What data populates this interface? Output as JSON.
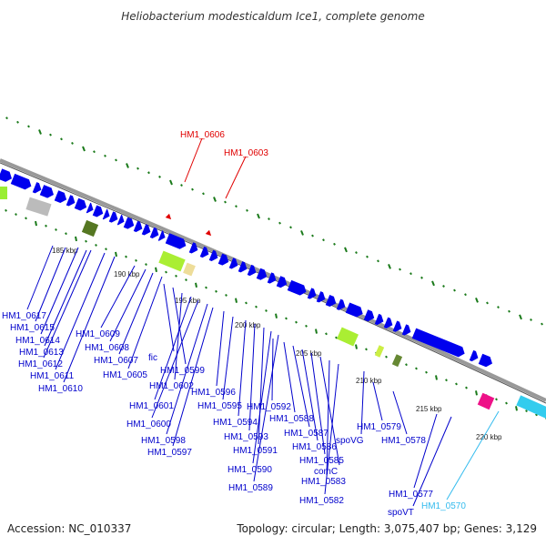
{
  "title": "Heliobacterium modesticaldum Ice1, complete genome",
  "accession": "Accession: NC_010337",
  "topology": "Topology: circular; Length: 3,075,407 bp; Genes: 3,129",
  "colors": {
    "gene": "#0000ff",
    "highlight": "#e00000",
    "label": "#0000cc",
    "cyan": "#33bbee",
    "backbone": "#999999",
    "dots": "#006600"
  },
  "ticks": [
    "185 kbp",
    "190 kbp",
    "195 kbp",
    "200 kbp",
    "205 kbp",
    "210 kbp",
    "215 kbp",
    "220 kbp"
  ],
  "highlight_labels": [
    "HM1_0606",
    "HM1_0603"
  ],
  "gene_labels": [
    {
      "text": "HM1_0617",
      "color": "label"
    },
    {
      "text": "HM1_0615",
      "color": "label"
    },
    {
      "text": "HM1_0614",
      "color": "label"
    },
    {
      "text": "HM1_0613",
      "color": "label"
    },
    {
      "text": "HM1_0612",
      "color": "label"
    },
    {
      "text": "HM1_0611",
      "color": "label"
    },
    {
      "text": "HM1_0610",
      "color": "label"
    },
    {
      "text": "HM1_0609",
      "color": "label"
    },
    {
      "text": "HM1_0608",
      "color": "label"
    },
    {
      "text": "HM1_0607",
      "color": "label"
    },
    {
      "text": "HM1_0605",
      "color": "label"
    },
    {
      "text": "fic",
      "color": "label"
    },
    {
      "text": "HM1_0599",
      "color": "label"
    },
    {
      "text": "HM1_0602",
      "color": "label"
    },
    {
      "text": "HM1_0601",
      "color": "label"
    },
    {
      "text": "HM1_0600",
      "color": "label"
    },
    {
      "text": "HM1_0598",
      "color": "label"
    },
    {
      "text": "HM1_0597",
      "color": "label"
    },
    {
      "text": "HM1_0596",
      "color": "label"
    },
    {
      "text": "HM1_0595",
      "color": "label"
    },
    {
      "text": "HM1_0594",
      "color": "label"
    },
    {
      "text": "HM1_0593",
      "color": "label"
    },
    {
      "text": "HM1_0591",
      "color": "label"
    },
    {
      "text": "HM1_0590",
      "color": "label"
    },
    {
      "text": "HM1_0589",
      "color": "label"
    },
    {
      "text": "HM1_0592",
      "color": "label"
    },
    {
      "text": "HM1_0588",
      "color": "label"
    },
    {
      "text": "HM1_0587",
      "color": "label"
    },
    {
      "text": "HM1_0586",
      "color": "label"
    },
    {
      "text": "HM1_0585",
      "color": "label"
    },
    {
      "text": "comC",
      "color": "label"
    },
    {
      "text": "HM1_0583",
      "color": "label"
    },
    {
      "text": "HM1_0582",
      "color": "label"
    },
    {
      "text": "spoVG",
      "color": "label"
    },
    {
      "text": "HM1_0579",
      "color": "label"
    },
    {
      "text": "HM1_0578",
      "color": "label"
    },
    {
      "text": "HM1_0577",
      "color": "label"
    },
    {
      "text": "spoVT",
      "color": "label"
    },
    {
      "text": "HM1_0570",
      "color": "cyan"
    }
  ]
}
